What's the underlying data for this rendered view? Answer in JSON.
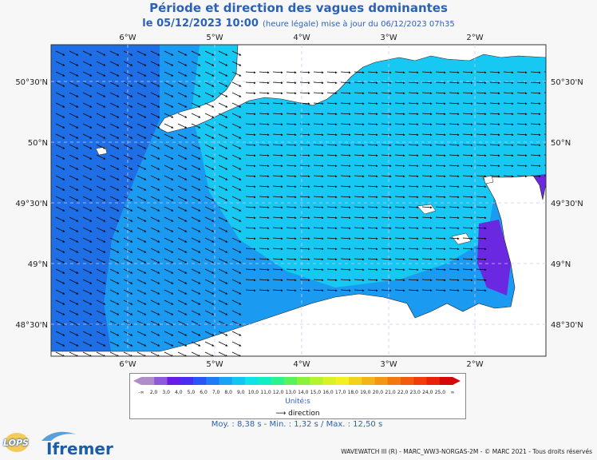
{
  "header": {
    "title": "Période et direction des vagues dominantes",
    "date_line": "le 05/12/2023 10:00",
    "update_note": "(heure légale) mise à jour du 06/12/2023 07h35"
  },
  "axes": {
    "longitude_labels": [
      "6°W",
      "5°W",
      "4°W",
      "3°W",
      "2°W"
    ],
    "latitude_labels": [
      "50°30'N",
      "50°N",
      "49°30'N",
      "49°N",
      "48°30'N"
    ]
  },
  "legend": {
    "scale_ticks": [
      "-∞",
      "2,0",
      "3,0",
      "4,0",
      "5,0",
      "6,0",
      "7,0",
      "8,0",
      "9,0",
      "10,0",
      "11,0",
      "12,0",
      "13,0",
      "14,0",
      "15,0",
      "16,0",
      "17,0",
      "18,0",
      "19,0",
      "20,0",
      "21,0",
      "22,0",
      "23,0",
      "24,0",
      "25,0",
      "∞"
    ],
    "colors": [
      "#b08cc8",
      "#8f5ad9",
      "#6a1be8",
      "#4a2df2",
      "#2b55f5",
      "#1f7cf5",
      "#1aa3f5",
      "#12c6f0",
      "#0fe3e8",
      "#12eec4",
      "#2af28c",
      "#5af25a",
      "#8af23a",
      "#b5f230",
      "#d9f228",
      "#f2ef22",
      "#f2d21c",
      "#f2b418",
      "#f29614",
      "#f27810",
      "#f25a0e",
      "#f23c0c",
      "#e8220a",
      "#d40808"
    ],
    "units": "Unité:s",
    "direction_label": "direction",
    "direction_icon": "arrow-right-icon"
  },
  "stats": "Moy. : 8,38 s   -   Min. : 1,32 s / Max. : 12,50 s",
  "footer": "WAVEWATCH III (R) - MARC_WW3-NORGAS-2M - © MARC 2021 - Tous droits réservés",
  "logos": {
    "lops": "LOPS",
    "ifremer": "Ifremer"
  },
  "map_colors": {
    "deep_blue": "#1e6ee6",
    "mid_blue": "#1a9af0",
    "cyan": "#16c8f2",
    "land": "#ffffff",
    "purple": "#6a28e0"
  }
}
